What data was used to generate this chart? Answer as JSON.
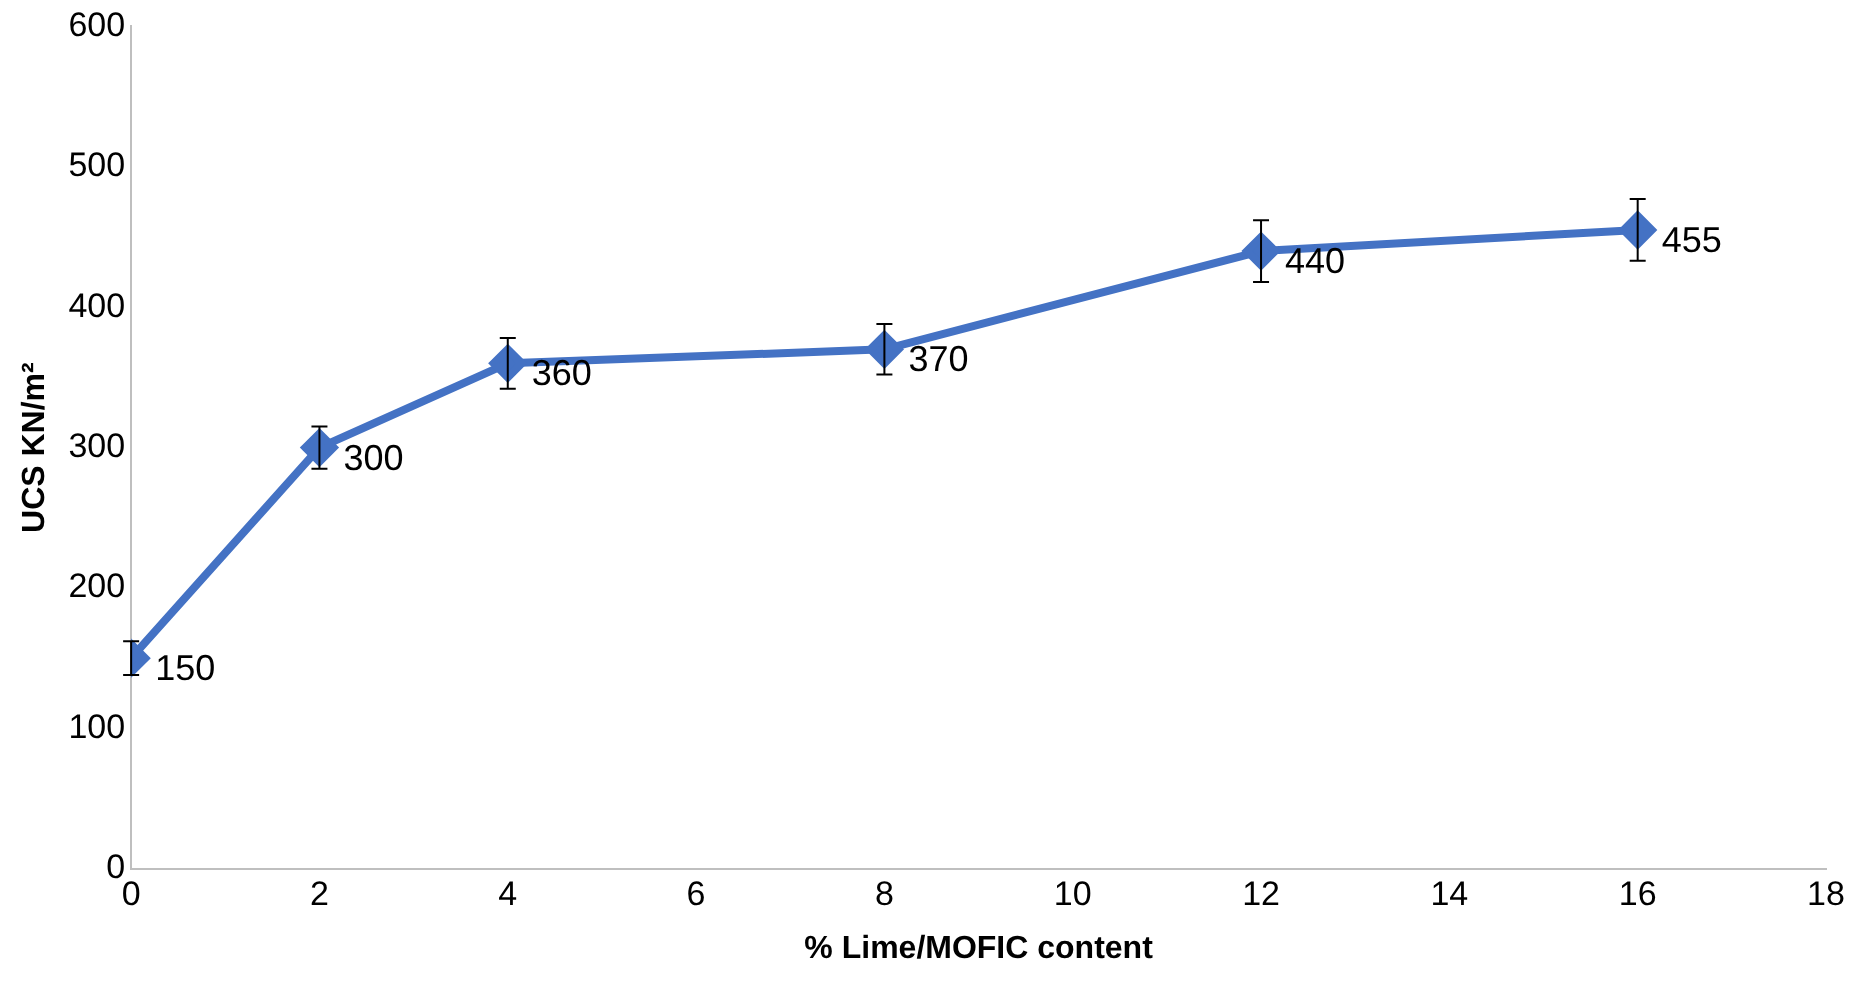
{
  "chart_data": {
    "type": "line",
    "xlabel": "% Lime/MOFIC content",
    "ylabel": "UCS KN/m²",
    "x": [
      0,
      2,
      4,
      8,
      12,
      16
    ],
    "series": [
      {
        "color": "#4472c4",
        "values": [
          150,
          300,
          360,
          370,
          440,
          455
        ],
        "errors": [
          12,
          15,
          18,
          18,
          22,
          22
        ]
      }
    ],
    "xlim": [
      0,
      18
    ],
    "xticks": [
      0,
      2,
      4,
      6,
      8,
      10,
      12,
      14,
      16,
      18
    ],
    "ylim": [
      0,
      600
    ],
    "yticks": [
      0,
      100,
      200,
      300,
      400,
      500,
      600
    ],
    "grid": false,
    "legend": false,
    "marker": "diamond",
    "line_style": "solid",
    "data_labels": true
  }
}
